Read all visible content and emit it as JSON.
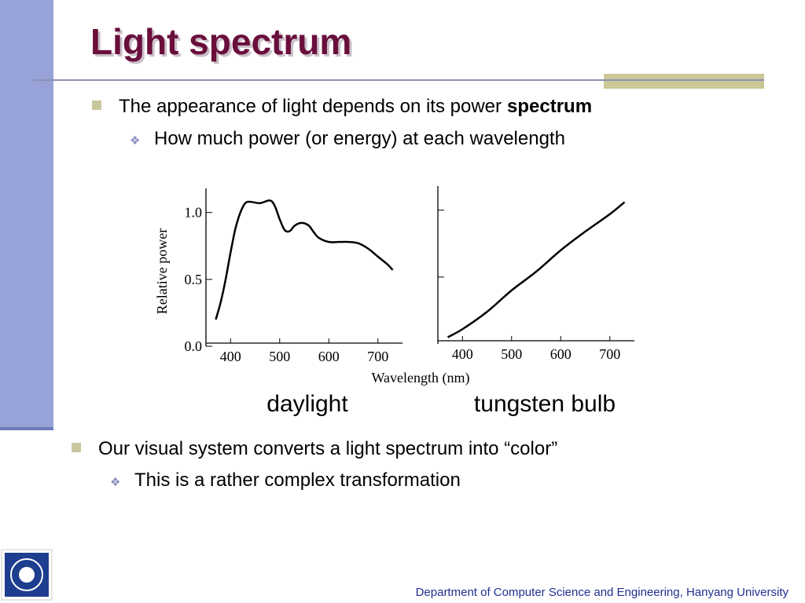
{
  "slide": {
    "title": "Light spectrum",
    "bullets": [
      {
        "text": "The appearance of light depends on its power",
        "bold": "spectrum",
        "sub": "How much power (or energy) at each wavelength"
      },
      {
        "text": "Our visual system converts a light spectrum into “color”",
        "sub": "This is a rather complex transformation"
      }
    ],
    "footer": "Department of Computer Science and Engineering, Hanyang University"
  },
  "chart_data": [
    {
      "type": "line",
      "caption": "daylight",
      "ylabel": "Relative power",
      "xlabel": "Wavelength (nm)",
      "color": "#000000",
      "x": [
        370,
        380,
        390,
        400,
        410,
        420,
        430,
        440,
        460,
        480,
        490,
        500,
        510,
        520,
        530,
        540,
        550,
        560,
        570,
        580,
        600,
        620,
        640,
        660,
        680,
        700,
        720,
        730
      ],
      "values": [
        0.2,
        0.33,
        0.5,
        0.7,
        0.88,
        1.0,
        1.07,
        1.08,
        1.07,
        1.09,
        1.05,
        0.95,
        0.87,
        0.86,
        0.9,
        0.92,
        0.92,
        0.9,
        0.85,
        0.81,
        0.78,
        0.78,
        0.78,
        0.77,
        0.73,
        0.67,
        0.61,
        0.57
      ],
      "xlim": [
        350,
        750
      ],
      "ylim": [
        0,
        1.18
      ],
      "xticks": [
        400,
        500,
        600,
        700
      ],
      "yticks": [
        {
          "value": 0,
          "label": "0.0"
        },
        0.5,
        {
          "value": 1,
          "label": "1.0"
        }
      ],
      "ytick_labels": true
    },
    {
      "type": "line",
      "caption": "tungsten bulb",
      "color": "#000000",
      "x": [
        370,
        400,
        450,
        500,
        550,
        600,
        650,
        700,
        730
      ],
      "values": [
        0.05,
        0.11,
        0.24,
        0.4,
        0.54,
        0.7,
        0.84,
        0.97,
        1.06
      ],
      "xlim": [
        350,
        750
      ],
      "ylim": [
        0,
        1.18
      ],
      "xticks": [
        400,
        500,
        600,
        700
      ],
      "yticks": [
        0.5,
        1
      ],
      "ytick_labels": false
    }
  ]
}
